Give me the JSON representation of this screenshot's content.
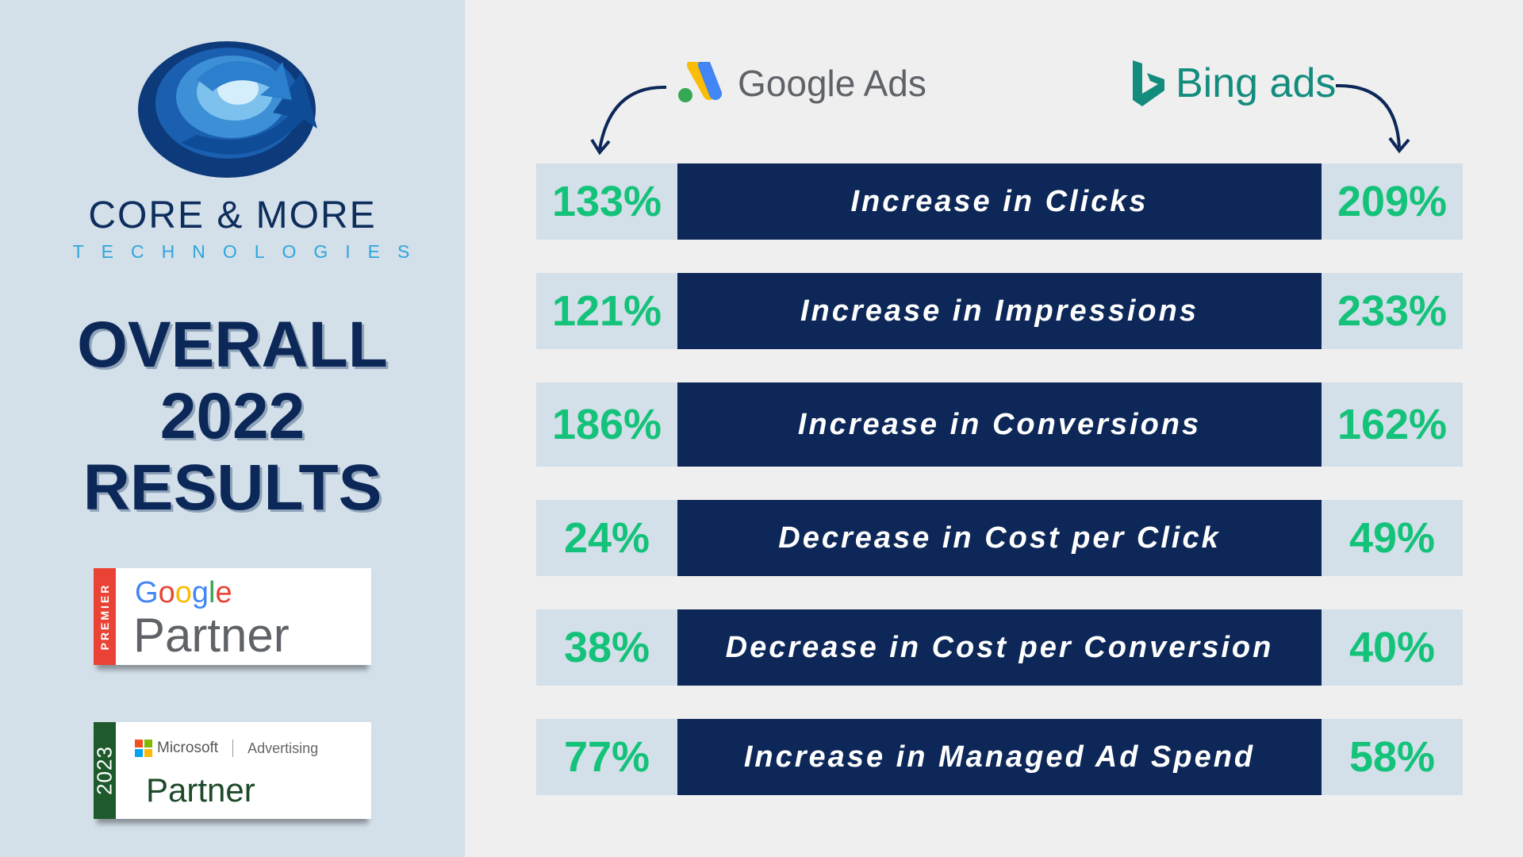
{
  "logo": {
    "name": "CORE & MORE",
    "tagline": "TECHNOLOGIES"
  },
  "heading": {
    "line1": "OVERALL",
    "line2": "2022",
    "line3": "RESULTS"
  },
  "badges": {
    "google": {
      "strip": "PREMIER",
      "brand": "Google",
      "title": "Partner"
    },
    "microsoft": {
      "strip": "2023",
      "brand": "Microsoft",
      "product": "Advertising",
      "title": "Partner"
    }
  },
  "headers": {
    "google": "Google Ads",
    "bing": "Bing ads"
  },
  "colors": {
    "navy": "#0c2758",
    "green": "#14c27a",
    "panel": "#d3dfe9"
  },
  "rows": [
    {
      "google": "133%",
      "label": "Increase in Clicks",
      "bing": "209%"
    },
    {
      "google": "121%",
      "label": "Increase in Impressions",
      "bing": "233%"
    },
    {
      "google": "186%",
      "label": "Increase in Conversions",
      "bing": "162%"
    },
    {
      "google": "24%",
      "label": "Decrease in Cost per Click",
      "bing": "49%"
    },
    {
      "google": "38%",
      "label": "Decrease in Cost per Conversion",
      "bing": "40%"
    },
    {
      "google": "77%",
      "label": "Increase in Managed Ad Spend",
      "bing": "58%"
    }
  ]
}
